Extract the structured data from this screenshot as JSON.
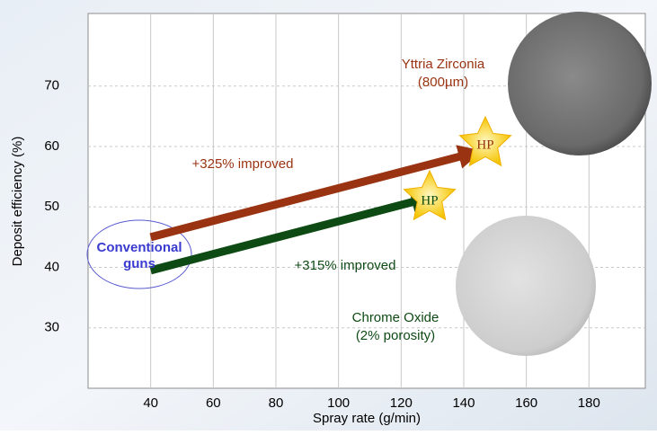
{
  "chart_data": {
    "type": "line",
    "x_label": "Spray rate (g/min)",
    "y_label": "Deposit efficiency (%)",
    "xlim": [
      20,
      198
    ],
    "xticks": [
      40,
      60,
      80,
      100,
      120,
      140,
      160,
      180
    ],
    "ylim": [
      20,
      82
    ],
    "yticks": [
      30,
      40,
      50,
      60,
      70
    ],
    "grid": true,
    "series": [
      {
        "color": "#993311",
        "x": [
          40,
          140
        ],
        "values": [
          45,
          58.5
        ]
      },
      {
        "color": "#0e4a14",
        "x": [
          40,
          125
        ],
        "values": [
          39.5,
          51
        ]
      }
    ],
    "annotations": [
      "Yttria Zirconia",
      "(800µm)",
      "+325% improved",
      "+315% improved",
      "Chrome Oxide",
      "(2% porosity)",
      "Conventional",
      "guns",
      "HP",
      "HP"
    ]
  }
}
